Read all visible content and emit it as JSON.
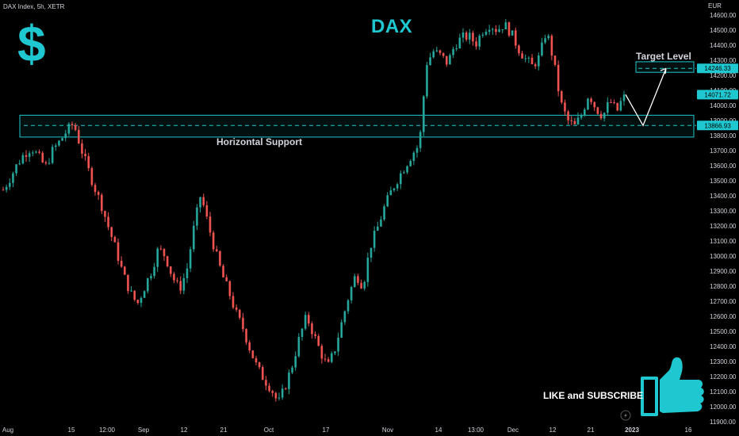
{
  "header": {
    "symbol_text": "DAX Index, 5h, XETR",
    "currency": "EUR"
  },
  "annotations": {
    "title": "DAX",
    "dollar": "$",
    "support_label": "Horizontal Support",
    "target_label": "Target Level",
    "like_label": "LIKE and SUBSCRIBE"
  },
  "colors": {
    "up": "#26a69a",
    "down": "#ef5350",
    "accent": "#1fc8d0",
    "background": "#000000",
    "text": "#d1d4dc"
  },
  "icons": [
    "dollar-icon",
    "thumbs-up-icon",
    "lightning-icon"
  ],
  "chart_data": {
    "type": "candlestick",
    "yaxis_side": "right",
    "ylim": [
      11900,
      14650
    ],
    "y_ticks": [
      "14600.00",
      "14500.00",
      "14400.00",
      "14300.00",
      "14200.00",
      "14100.00",
      "14000.00",
      "13900.00",
      "13800.00",
      "13700.00",
      "13600.00",
      "13500.00",
      "13400.00",
      "13300.00",
      "13200.00",
      "13100.00",
      "13000.00",
      "12900.00",
      "12800.00",
      "12700.00",
      "12600.00",
      "12500.00",
      "12400.00",
      "12300.00",
      "12200.00",
      "12100.00",
      "12000.00",
      "11900.00"
    ],
    "x_ticks": [
      "Aug",
      "15",
      "12:00",
      "Sep",
      "12",
      "21",
      "Oct",
      "17",
      "Nov",
      "14",
      "13:00",
      "Dec",
      "12",
      "21",
      "2023",
      "16"
    ],
    "price_labels": [
      {
        "text": "14246.33",
        "value": 14246.33
      },
      {
        "text": "14071.72",
        "value": 14071.72
      },
      {
        "text": "13866.93",
        "value": 13866.93
      }
    ],
    "horizontal_support": {
      "low": 13790,
      "high": 13935,
      "line": 13866.93
    },
    "target_level": {
      "low": 14220,
      "high": 14290,
      "line": 14246.33
    },
    "close_path": [
      13440,
      13520,
      13610,
      13680,
      13720,
      13660,
      13590,
      13700,
      13760,
      13830,
      13880,
      13720,
      13580,
      13450,
      13330,
      13180,
      13040,
      12880,
      12760,
      12680,
      12790,
      12900,
      13050,
      13000,
      12860,
      12780,
      12900,
      13180,
      13410,
      13220,
      13040,
      12880,
      12760,
      12620,
      12520,
      12380,
      12260,
      12180,
      12120,
      12020,
      12140,
      12280,
      12460,
      12600,
      12480,
      12360,
      12260,
      12380,
      12560,
      12740,
      12880,
      12800,
      13060,
      13180,
      13320,
      13430,
      13520,
      13600,
      13680,
      13740,
      14280,
      14360,
      14330,
      14280,
      14400,
      14450,
      14460,
      14410,
      14500,
      14540,
      14500,
      14540,
      14480,
      14380,
      14310,
      14260,
      14320,
      14500,
      14300,
      14020,
      13900,
      13860,
      13940,
      14080,
      13980,
      13930,
      14030,
      13960,
      14071.72
    ],
    "projection": [
      14071.72,
      13866.93,
      14246.33
    ]
  }
}
